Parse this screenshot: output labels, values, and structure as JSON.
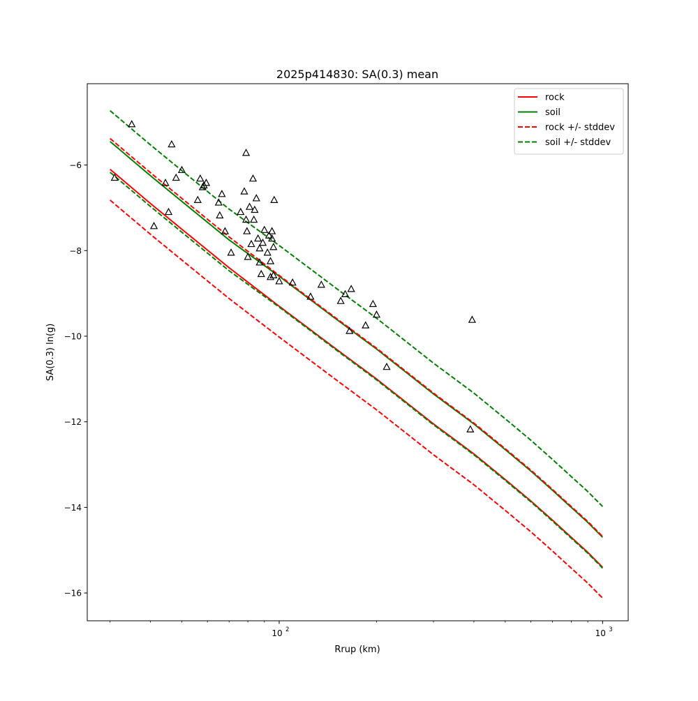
{
  "chart_data": {
    "type": "line",
    "title": "2025p414830: SA(0.3) mean",
    "xlabel": "Rrup (km)",
    "ylabel": "SA(0.3) ln(g)",
    "xscale": "log",
    "xlim": [
      25.5,
      1200
    ],
    "ylim": [
      -16.65,
      -4.1
    ],
    "grid": false,
    "legend_position": "top-right",
    "x_ticks": [
      {
        "value": 100,
        "label": "10",
        "exp": "2"
      },
      {
        "value": 1000,
        "label": "10",
        "exp": "3"
      }
    ],
    "y_ticks": [
      {
        "value": -6,
        "label": "−6"
      },
      {
        "value": -8,
        "label": "−8"
      },
      {
        "value": -10,
        "label": "−10"
      },
      {
        "value": -12,
        "label": "−12"
      },
      {
        "value": -14,
        "label": "−14"
      },
      {
        "value": -16,
        "label": "−16"
      }
    ],
    "series": [
      {
        "name": "rock",
        "color": "#ff0000",
        "dash": "solid",
        "x": [
          30,
          40,
          50,
          70,
          100,
          150,
          200,
          300,
          400,
          500,
          600,
          700,
          800,
          900,
          1000
        ],
        "y": [
          -6.1,
          -6.9,
          -7.5,
          -8.4,
          -9.3,
          -10.3,
          -11.0,
          -12.05,
          -12.75,
          -13.35,
          -13.85,
          -14.3,
          -14.7,
          -15.05,
          -15.4
        ]
      },
      {
        "name": "soil",
        "color": "#008000",
        "dash": "solid",
        "x": [
          30,
          40,
          50,
          70,
          100,
          150,
          200,
          300,
          400,
          500,
          600,
          700,
          800,
          900,
          1000
        ],
        "y": [
          -5.45,
          -6.25,
          -6.85,
          -7.75,
          -8.6,
          -9.6,
          -10.3,
          -11.35,
          -12.05,
          -12.65,
          -13.15,
          -13.6,
          -14.0,
          -14.35,
          -14.7
        ]
      },
      {
        "name": "rock +/- stddev",
        "color": "#ff0000",
        "dash": "dashed",
        "x": [
          30,
          40,
          50,
          70,
          100,
          150,
          200,
          300,
          400,
          500,
          600,
          700,
          800,
          900,
          1000
        ],
        "y": [
          -5.38,
          -6.18,
          -6.78,
          -7.68,
          -8.58,
          -9.58,
          -10.28,
          -11.33,
          -12.03,
          -12.63,
          -13.13,
          -13.58,
          -13.98,
          -14.33,
          -14.68
        ]
      },
      {
        "name": "",
        "color": "#ff0000",
        "dash": "dashed",
        "x": [
          30,
          40,
          50,
          70,
          100,
          150,
          200,
          300,
          400,
          500,
          600,
          700,
          800,
          900,
          1000
        ],
        "y": [
          -6.82,
          -7.62,
          -8.22,
          -9.12,
          -10.02,
          -11.02,
          -11.72,
          -12.77,
          -13.47,
          -14.07,
          -14.57,
          -15.02,
          -15.42,
          -15.77,
          -16.12
        ]
      },
      {
        "name": "soil +/- stddev",
        "color": "#008000",
        "dash": "dashed",
        "x": [
          30,
          40,
          50,
          70,
          100,
          150,
          200,
          300,
          400,
          500,
          600,
          700,
          800,
          900,
          1000
        ],
        "y": [
          -4.73,
          -5.53,
          -6.13,
          -7.03,
          -7.88,
          -8.88,
          -9.58,
          -10.63,
          -11.33,
          -11.93,
          -12.43,
          -12.88,
          -13.28,
          -13.63,
          -13.98
        ]
      },
      {
        "name": "",
        "color": "#008000",
        "dash": "dashed",
        "x": [
          30,
          40,
          50,
          70,
          100,
          150,
          200,
          300,
          400,
          500,
          600,
          700,
          800,
          900,
          1000
        ],
        "y": [
          -6.17,
          -6.97,
          -7.57,
          -8.47,
          -9.32,
          -10.32,
          -11.02,
          -12.07,
          -12.77,
          -13.37,
          -13.87,
          -14.32,
          -14.72,
          -15.07,
          -15.42
        ]
      }
    ],
    "observations": {
      "marker": "triangle",
      "x": [
        31,
        35,
        41,
        44.5,
        45.5,
        46.5,
        48,
        50,
        56,
        57,
        58,
        58.5,
        59.5,
        65,
        65.5,
        66.5,
        68,
        71,
        76,
        78,
        79,
        79,
        79.5,
        80,
        81,
        82,
        83,
        83.5,
        84,
        85,
        86,
        87,
        87,
        88,
        89,
        90,
        92,
        93,
        94,
        94,
        95,
        95,
        96,
        96,
        96.5,
        100,
        110,
        125,
        135,
        155,
        160,
        165,
        167,
        185,
        195,
        200,
        215,
        390,
        395
      ],
      "y": [
        -6.3,
        -5.05,
        -7.43,
        -6.42,
        -7.1,
        -5.52,
        -6.3,
        -6.12,
        -6.82,
        -6.32,
        -6.52,
        -6.48,
        -6.42,
        -6.88,
        -7.18,
        -6.68,
        -7.55,
        -8.05,
        -7.1,
        -6.62,
        -5.72,
        -7.28,
        -7.55,
        -8.15,
        -6.98,
        -7.85,
        -6.32,
        -7.28,
        -7.05,
        -6.78,
        -7.72,
        -7.95,
        -8.28,
        -8.55,
        -7.82,
        -7.52,
        -8.05,
        -7.65,
        -8.62,
        -8.25,
        -7.55,
        -7.72,
        -7.92,
        -8.58,
        -6.82,
        -8.72,
        -8.75,
        -9.08,
        -8.8,
        -9.18,
        -9.02,
        -9.88,
        -8.9,
        -9.75,
        -9.25,
        -9.5,
        -10.72,
        -12.18,
        -9.62
      ]
    }
  }
}
